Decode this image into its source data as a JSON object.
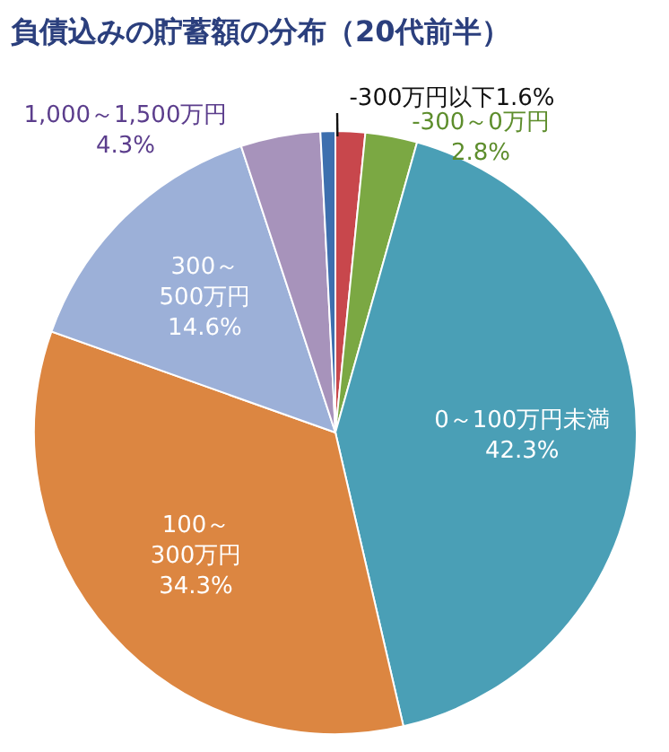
{
  "chart_data": {
    "type": "pie",
    "title": "負債込みの貯蓄額の分布（20代前半）",
    "categories": [
      "-300万円以下",
      "-300～0万円",
      "0～100万円未満",
      "100～300万円",
      "300～500万円",
      "1,000～1,500万円",
      null
    ],
    "values": [
      1.6,
      2.8,
      42.3,
      34.3,
      14.6,
      4.3,
      0.8
    ],
    "colors": [
      "#c8474c",
      "#7ba843",
      "#4a9fb6",
      "#dc8641",
      "#9cb0d8",
      "#a793bb",
      "#3d6fae"
    ],
    "value_labels": [
      "1.6%",
      "2.8%",
      "42.3%",
      "34.3%",
      "14.6%",
      "4.3%",
      null
    ]
  }
}
